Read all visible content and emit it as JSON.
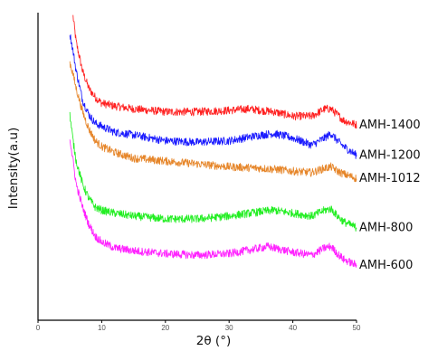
{
  "chart_data": {
    "type": "line",
    "xlabel": "2θ  (°)",
    "ylabel": "Intensity(a.u)",
    "xlim": [
      0,
      50
    ],
    "x_ticks": [
      0,
      10,
      20,
      30,
      40,
      50
    ],
    "y_ticks_visible": false,
    "legend": "labels at right end of each curve",
    "grid": false,
    "series": [
      {
        "name": "AMH-1400",
        "color": "#ff2020",
        "x": [
          5.5,
          6,
          7,
          8,
          9,
          10,
          12,
          15,
          20,
          25,
          30,
          33,
          37,
          40,
          43,
          45,
          46,
          47,
          48,
          50
        ],
        "values": [
          1.0,
          0.91,
          0.81,
          0.75,
          0.72,
          0.7,
          0.69,
          0.68,
          0.67,
          0.67,
          0.675,
          0.68,
          0.67,
          0.655,
          0.655,
          0.68,
          0.68,
          0.66,
          0.64,
          0.625
        ]
      },
      {
        "name": "AMH-1200",
        "color": "#1a1aff",
        "x": [
          5,
          5.5,
          6,
          7,
          8,
          9,
          10,
          12,
          15,
          20,
          25,
          30,
          35,
          37,
          40,
          43,
          45,
          46,
          47,
          48,
          50
        ],
        "values": [
          0.94,
          0.88,
          0.81,
          0.71,
          0.66,
          0.63,
          0.62,
          0.6,
          0.59,
          0.57,
          0.565,
          0.57,
          0.59,
          0.595,
          0.58,
          0.555,
          0.58,
          0.595,
          0.57,
          0.55,
          0.52
        ]
      },
      {
        "name": "AMH-1012",
        "color": "#e6862a",
        "x": [
          5,
          5.5,
          6,
          7,
          8,
          9,
          10,
          12,
          15,
          20,
          25,
          30,
          35,
          38,
          40,
          43,
          45,
          46,
          47,
          48,
          50
        ],
        "values": [
          0.84,
          0.8,
          0.75,
          0.67,
          0.61,
          0.57,
          0.55,
          0.53,
          0.51,
          0.5,
          0.49,
          0.48,
          0.475,
          0.47,
          0.465,
          0.46,
          0.475,
          0.48,
          0.465,
          0.455,
          0.44
        ]
      },
      {
        "name": "AMH-800",
        "color": "#22ee22",
        "x": [
          5,
          5.5,
          6,
          7,
          8,
          9,
          10,
          12,
          15,
          20,
          25,
          30,
          35,
          37,
          40,
          43,
          45,
          46,
          47,
          48,
          50
        ],
        "values": [
          0.66,
          0.57,
          0.5,
          0.42,
          0.37,
          0.34,
          0.33,
          0.32,
          0.31,
          0.3,
          0.3,
          0.31,
          0.325,
          0.33,
          0.32,
          0.31,
          0.33,
          0.335,
          0.31,
          0.29,
          0.27
        ]
      },
      {
        "name": "AMH-600",
        "color": "#ff22ff",
        "x": [
          5,
          5.5,
          6,
          7,
          8,
          9,
          10,
          12,
          15,
          20,
          25,
          30,
          35,
          36,
          38,
          40,
          43,
          45,
          46,
          47,
          48,
          50
        ],
        "values": [
          0.58,
          0.5,
          0.42,
          0.34,
          0.28,
          0.24,
          0.22,
          0.2,
          0.19,
          0.18,
          0.175,
          0.18,
          0.2,
          0.205,
          0.195,
          0.185,
          0.175,
          0.2,
          0.205,
          0.18,
          0.16,
          0.14
        ]
      }
    ]
  }
}
